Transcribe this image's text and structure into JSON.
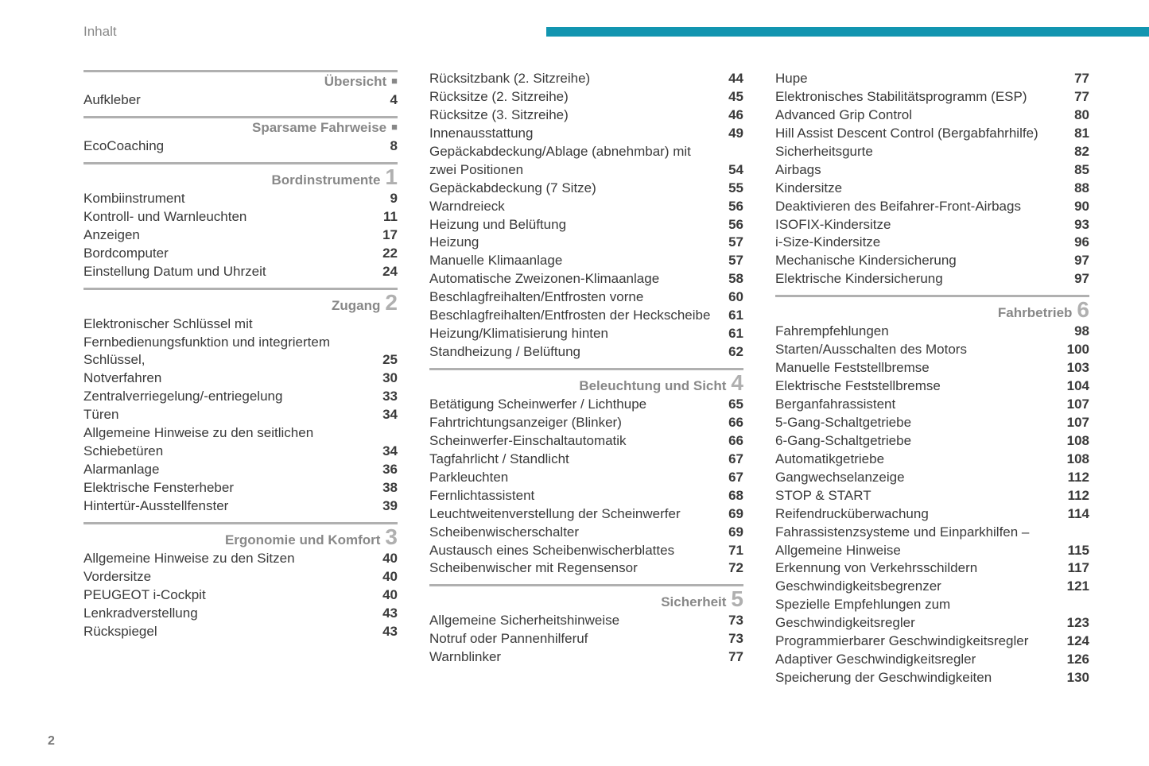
{
  "header": {
    "page_title": "Inhalt",
    "page_number": "2",
    "accent_color": "#1295b0"
  },
  "columns": [
    {
      "sections": [
        {
          "title": "Übersicht",
          "num": "",
          "bullet": true,
          "entries": [
            {
              "label": "Aufkleber",
              "page": "4"
            }
          ]
        },
        {
          "title": "Sparsame Fahrweise",
          "num": "",
          "bullet": true,
          "entries": [
            {
              "label": "EcoCoaching",
              "page": "8"
            }
          ]
        },
        {
          "title": "Bordinstrumente",
          "num": "1",
          "entries": [
            {
              "label": "Kombiinstrument",
              "page": "9"
            },
            {
              "label": "Kontroll- und Warnleuchten",
              "page": "11"
            },
            {
              "label": "Anzeigen",
              "page": "17"
            },
            {
              "label": "Bordcomputer",
              "page": "22"
            },
            {
              "label": "Einstellung Datum und Uhrzeit",
              "page": "24"
            }
          ]
        },
        {
          "title": "Zugang",
          "num": "2",
          "entries": [
            {
              "label": "Elektronischer Schlüssel mit Fernbedienungsfunktion und integriertem Schlüssel,",
              "page": "25"
            },
            {
              "label": "Notverfahren",
              "page": "30"
            },
            {
              "label": "Zentralverriegelung/-entriegelung",
              "page": "33"
            },
            {
              "label": "Türen",
              "page": "34"
            },
            {
              "label": "Allgemeine Hinweise zu den seitlichen Schiebetüren",
              "page": "34"
            },
            {
              "label": "Alarmanlage",
              "page": "36"
            },
            {
              "label": "Elektrische Fensterheber",
              "page": "38"
            },
            {
              "label": "Hintertür-Ausstellfenster",
              "page": "39"
            }
          ]
        },
        {
          "title": "Ergonomie und Komfort",
          "num": "3",
          "entries": [
            {
              "label": "Allgemeine Hinweise zu den Sitzen",
              "page": "40"
            },
            {
              "label": "Vordersitze",
              "page": "40"
            },
            {
              "label": "PEUGEOT i-Cockpit",
              "page": "40"
            },
            {
              "label": "Lenkradverstellung",
              "page": "43"
            },
            {
              "label": "Rückspiegel",
              "page": "43"
            }
          ]
        }
      ]
    },
    {
      "sections": [
        {
          "continuation": true,
          "entries": [
            {
              "label": "Rücksitzbank (2. Sitzreihe)",
              "page": "44"
            },
            {
              "label": "Rücksitze (2. Sitzreihe)",
              "page": "45"
            },
            {
              "label": "Rücksitze (3. Sitzreihe)",
              "page": "46"
            },
            {
              "label": "Innenausstattung",
              "page": "49"
            },
            {
              "label": "Gepäckabdeckung/Ablage (abnehmbar) mit zwei Positionen",
              "page": "54"
            },
            {
              "label": "Gepäckabdeckung (7 Sitze)",
              "page": "55"
            },
            {
              "label": "Warndreieck",
              "page": "56"
            },
            {
              "label": "Heizung und Belüftung",
              "page": "56"
            },
            {
              "label": "Heizung",
              "page": "57"
            },
            {
              "label": "Manuelle Klimaanlage",
              "page": "57"
            },
            {
              "label": "Automatische Zweizonen-Klimaanlage",
              "page": "58"
            },
            {
              "label": "Beschlagfreihalten/Entfrosten vorne",
              "page": "60"
            },
            {
              "label": "Beschlagfreihalten/Entfrosten der Heckscheibe",
              "page": "61"
            },
            {
              "label": "Heizung/Klimatisierung hinten",
              "page": "61"
            },
            {
              "label": "Standheizung / Belüftung",
              "page": "62"
            }
          ]
        },
        {
          "title": "Beleuchtung und Sicht",
          "num": "4",
          "entries": [
            {
              "label": "Betätigung Scheinwerfer / Lichthupe",
              "page": "65"
            },
            {
              "label": "Fahrtrichtungsanzeiger (Blinker)",
              "page": "66"
            },
            {
              "label": "Scheinwerfer-Einschaltautomatik",
              "page": "66"
            },
            {
              "label": "Tagfahrlicht / Standlicht",
              "page": "67"
            },
            {
              "label": "Parkleuchten",
              "page": "67"
            },
            {
              "label": "Fernlichtassistent",
              "page": "68"
            },
            {
              "label": "Leuchtweitenverstellung der Scheinwerfer",
              "page": "69"
            },
            {
              "label": "Scheibenwischerschalter",
              "page": "69"
            },
            {
              "label": "Austausch eines Scheibenwischerblattes",
              "page": "71"
            },
            {
              "label": "Scheibenwischer mit Regensensor",
              "page": "72"
            }
          ]
        },
        {
          "title": "Sicherheit",
          "num": "5",
          "entries": [
            {
              "label": "Allgemeine Sicherheitshinweise",
              "page": "73"
            },
            {
              "label": "Notruf oder Pannenhilferuf",
              "page": "73"
            },
            {
              "label": "Warnblinker",
              "page": "77"
            }
          ]
        }
      ]
    },
    {
      "sections": [
        {
          "continuation": true,
          "entries": [
            {
              "label": "Hupe",
              "page": "77"
            },
            {
              "label": "Elektronisches Stabilitätsprogramm (ESP)",
              "page": "77"
            },
            {
              "label": "Advanced Grip Control",
              "page": "80"
            },
            {
              "label": "Hill Assist Descent Control (Bergabfahrhilfe)",
              "page": "81"
            },
            {
              "label": "Sicherheitsgurte",
              "page": "82"
            },
            {
              "label": "Airbags",
              "page": "85"
            },
            {
              "label": "Kindersitze",
              "page": "88"
            },
            {
              "label": "Deaktivieren des Beifahrer-Front-Airbags",
              "page": "90"
            },
            {
              "label": "ISOFIX-Kindersitze",
              "page": "93"
            },
            {
              "label": "i-Size-Kindersitze",
              "page": "96"
            },
            {
              "label": "Mechanische Kindersicherung",
              "page": "97"
            },
            {
              "label": "Elektrische Kindersicherung",
              "page": "97"
            }
          ]
        },
        {
          "title": "Fahrbetrieb",
          "num": "6",
          "entries": [
            {
              "label": "Fahrempfehlungen",
              "page": "98"
            },
            {
              "label": "Starten/Ausschalten des Motors",
              "page": "100"
            },
            {
              "label": "Manuelle Feststellbremse",
              "page": "103"
            },
            {
              "label": "Elektrische Feststellbremse",
              "page": "104"
            },
            {
              "label": "Berganfahrassistent",
              "page": "107"
            },
            {
              "label": "5-Gang-Schaltgetriebe",
              "page": "107"
            },
            {
              "label": "6-Gang-Schaltgetriebe",
              "page": "108"
            },
            {
              "label": "Automatikgetriebe",
              "page": "108"
            },
            {
              "label": "Gangwechselanzeige",
              "page": "112"
            },
            {
              "label": "STOP & START",
              "page": "112"
            },
            {
              "label": "Reifendrucküberwachung",
              "page": "114"
            },
            {
              "label": "Fahrassistenzsysteme und Einparkhilfen – Allgemeine Hinweise",
              "page": "115"
            },
            {
              "label": "Erkennung von Verkehrsschildern",
              "page": "117"
            },
            {
              "label": "Geschwindigkeitsbegrenzer",
              "page": "121"
            },
            {
              "label": "Spezielle Empfehlungen zum Geschwindigkeitsregler",
              "page": "123"
            },
            {
              "label": "Programmierbarer Geschwindigkeitsregler",
              "page": "124"
            },
            {
              "label": "Adaptiver Geschwindigkeitsregler",
              "page": "126"
            },
            {
              "label": "Speicherung der Geschwindigkeiten",
              "page": "130"
            }
          ]
        }
      ]
    }
  ]
}
